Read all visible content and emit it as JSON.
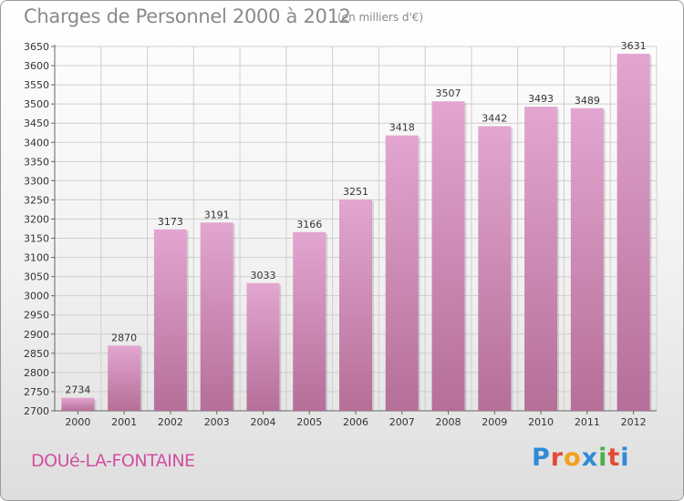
{
  "header": {
    "title": "Charges de Personnel 2000 à 2012",
    "subtitle": "(en milliers d'€)"
  },
  "footer": {
    "commune": "DOUé-LA-FONTAINE",
    "logo_text": "Proxiti"
  },
  "colors": {
    "bar_top": "#e2a6d0",
    "bar_bottom": "#b56f98",
    "grid": "#cfcfcf",
    "text": "#333333",
    "commune": "#d24fa2"
  },
  "chart_data": {
    "type": "bar",
    "title": "Charges de Personnel 2000 à 2012",
    "subtitle": "(en milliers d'€)",
    "categories": [
      "2000",
      "2001",
      "2002",
      "2003",
      "2004",
      "2005",
      "2006",
      "2007",
      "2008",
      "2009",
      "2010",
      "2011",
      "2012"
    ],
    "values": [
      2734,
      2870,
      3173,
      3191,
      3033,
      3166,
      3251,
      3418,
      3507,
      3442,
      3493,
      3489,
      3631
    ],
    "ylim": [
      2700,
      3650
    ],
    "ytick_step": 50,
    "grid": true,
    "data_labels": true
  }
}
